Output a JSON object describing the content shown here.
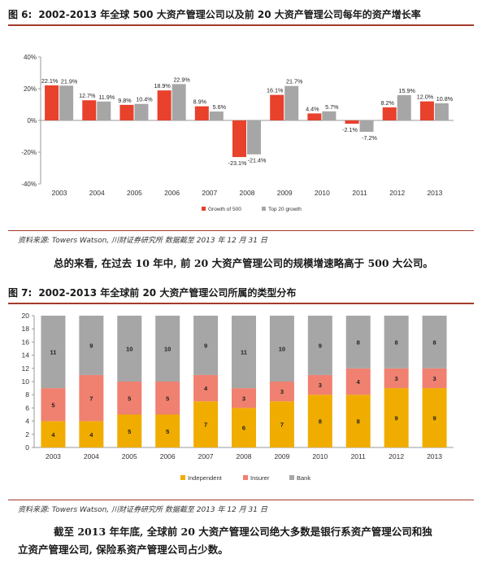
{
  "figure6": {
    "label": "图 6:",
    "title": "2002-2013 年全球 500 大资产管理公司以及前 20 大资产管理公司每年的资产增长率"
  },
  "figure7": {
    "label": "图 7:",
    "title": "2002-2013 年全球前 20 大资产管理公司所属的类型分布"
  },
  "source1": "资料来源: Towers Watson, 川财证券研究所  数据截至 2013 年 12 月 31 日",
  "source2": "资料来源: Towers Watson, 川财证券研究所  数据截至 2013 年 12 月 31 日",
  "paragraph1": "总的来看, 在过去 10 年中, 前 20 大资产管理公司的规模增速略高于 500 大公司。",
  "paragraph2_line1": "截至 2013 年年底, 全球前 20 大资产管理公司绝大多数是银行系资产管理公司和独",
  "paragraph2_line2": "立资产管理公司, 保险系资产管理公司占少数。",
  "chart_data": [
    {
      "type": "bar",
      "categories": [
        "2003",
        "2004",
        "2005",
        "2006",
        "2007",
        "2008",
        "2009",
        "2010",
        "2011",
        "2012",
        "2013"
      ],
      "series": [
        {
          "name": "Growth of 500",
          "color": "#e8412c",
          "values": [
            22.1,
            12.7,
            9.8,
            18.9,
            8.9,
            -23.1,
            16.1,
            4.4,
            -2.1,
            8.2,
            12.0
          ],
          "labels": [
            "22.1%",
            "12.7%",
            "9.8%",
            "18.9%",
            "8.9%",
            "-23.1%",
            "16.1%",
            "4.4%",
            "-2.1%",
            "8.2%",
            "12.0%"
          ]
        },
        {
          "name": "Top 20 growth",
          "color": "#a6a6a6",
          "values": [
            21.9,
            11.9,
            10.4,
            22.9,
            5.6,
            -21.4,
            21.7,
            5.7,
            -7.2,
            15.9,
            10.8
          ],
          "labels": [
            "21.9%",
            "11.9%",
            "10.4%",
            "22.9%",
            "5.6%",
            "-21.4%",
            "21.7%",
            "5.7%",
            "-7.2%",
            "15.9%",
            "10.8%"
          ]
        }
      ],
      "ylim": [
        -40,
        40
      ],
      "yticks": [
        -40,
        -20,
        0,
        20,
        40
      ],
      "ytick_labels": [
        "-40%",
        "-20%",
        "0%",
        "20%",
        "40%"
      ],
      "legend": "bottom-center",
      "grid": false
    },
    {
      "type": "bar",
      "stacked": true,
      "categories": [
        "2003",
        "2004",
        "2005",
        "2006",
        "2007",
        "2008",
        "2009",
        "2010",
        "2011",
        "2012",
        "2013"
      ],
      "series": [
        {
          "name": "Independent",
          "color": "#f0ad00",
          "values": [
            4,
            4,
            5,
            5,
            7,
            6,
            7,
            8,
            8,
            9,
            9
          ]
        },
        {
          "name": "Insurer",
          "color": "#f08070",
          "values": [
            5,
            7,
            5,
            5,
            4,
            3,
            3,
            3,
            4,
            3,
            3
          ]
        },
        {
          "name": "Bank",
          "color": "#a6a6a6",
          "values": [
            11,
            9,
            10,
            10,
            9,
            11,
            10,
            9,
            8,
            8,
            8
          ]
        }
      ],
      "ylim": [
        0,
        20
      ],
      "yticks": [
        0,
        2,
        4,
        6,
        8,
        10,
        12,
        14,
        16,
        18,
        20
      ],
      "legend": "bottom-center",
      "grid": false
    }
  ]
}
